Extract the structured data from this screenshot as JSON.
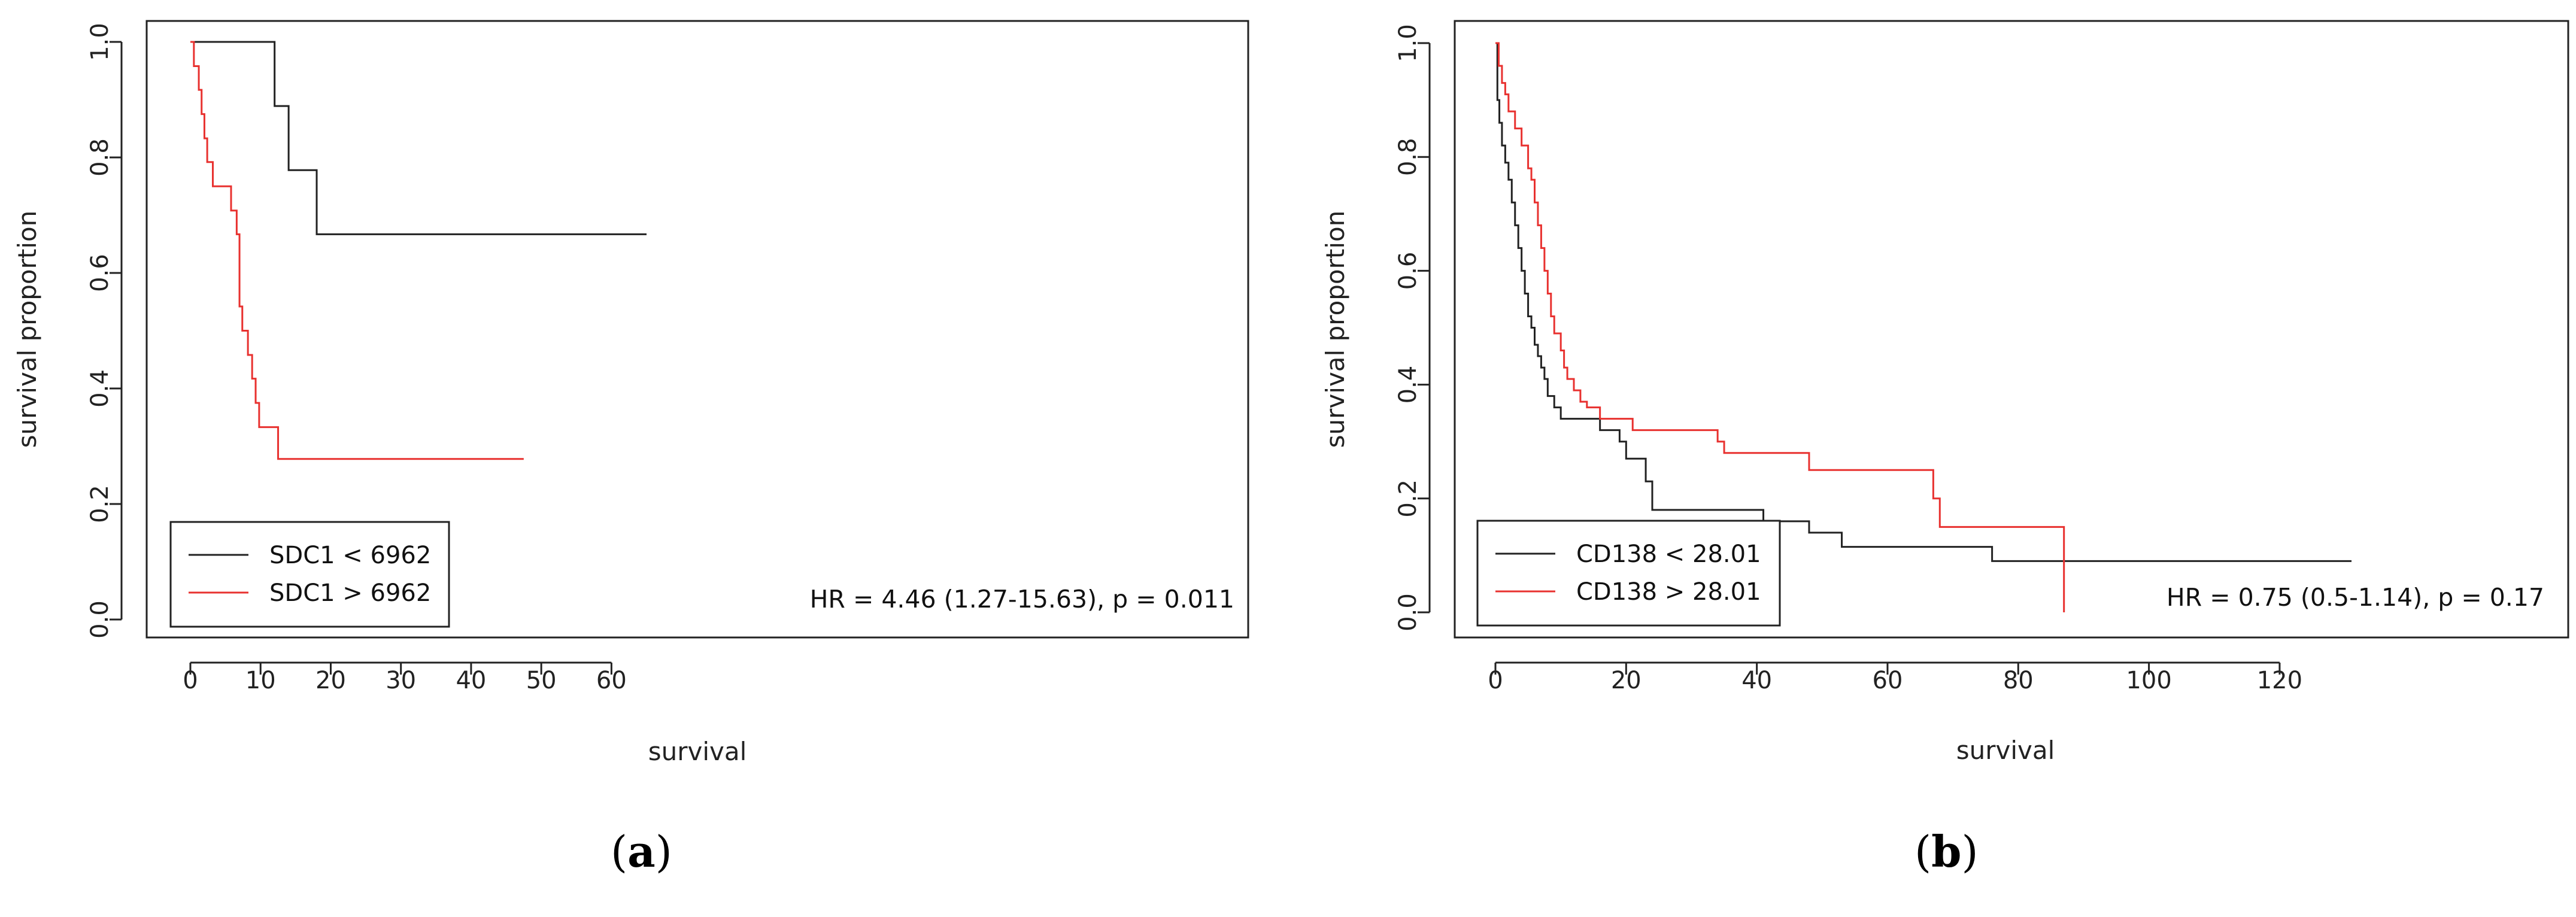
{
  "chart_data": [
    {
      "type": "line",
      "panel_label": "a",
      "xlabel": "survival",
      "ylabel": "survival proportion",
      "xlim": [
        0,
        65
      ],
      "ylim": [
        0,
        1
      ],
      "x_ticks": [
        0,
        10,
        20,
        30,
        40,
        50,
        60
      ],
      "x_tick_labels": [
        "0",
        "10",
        "20",
        "30",
        "40",
        "50",
        "60"
      ],
      "y_ticks": [
        0,
        0.2,
        0.4,
        0.6,
        0.8,
        1.0
      ],
      "y_tick_labels": [
        "0.0",
        "0.2",
        "0.4",
        "0.6",
        "0.8",
        "1.0"
      ],
      "legend_position": "bottom-left",
      "annotation": "HR = 4.46 (1.27-15.63), p = 0.011",
      "series": [
        {
          "name": "SDC1 < 6962",
          "color": "#222222",
          "step": true,
          "x": [
            0,
            12,
            14,
            18,
            65
          ],
          "y": [
            1.0,
            0.889,
            0.778,
            0.667,
            0.667
          ]
        },
        {
          "name": "SDC1 > 6962",
          "color": "#e8312f",
          "step": true,
          "x": [
            0,
            0.5,
            1.2,
            1.6,
            2.0,
            2.4,
            3.2,
            5.8,
            6.6,
            7.0,
            7.4,
            8.2,
            8.8,
            9.3,
            9.8,
            12.5,
            47.5
          ],
          "y": [
            1.0,
            0.958,
            0.917,
            0.875,
            0.833,
            0.792,
            0.75,
            0.708,
            0.667,
            0.542,
            0.5,
            0.458,
            0.417,
            0.375,
            0.333,
            0.278,
            0.278
          ]
        }
      ]
    },
    {
      "type": "line",
      "panel_label": "b",
      "xlabel": "survival",
      "ylabel": "survival proportion",
      "xlim": [
        0,
        131
      ],
      "ylim": [
        0,
        1
      ],
      "x_ticks": [
        0,
        20,
        40,
        60,
        80,
        100,
        120
      ],
      "x_tick_labels": [
        "0",
        "20",
        "40",
        "60",
        "80",
        "100",
        "120"
      ],
      "y_ticks": [
        0,
        0.2,
        0.4,
        0.6,
        0.8,
        1.0
      ],
      "y_tick_labels": [
        "0.0",
        "0.2",
        "0.4",
        "0.6",
        "0.8",
        "1.0"
      ],
      "legend_position": "bottom-left",
      "annotation": "HR = 0.75 (0.5-1.14), p = 0.17",
      "series": [
        {
          "name": "CD138 < 28.01",
          "color": "#222222",
          "step": true,
          "x": [
            0,
            0.3,
            0.6,
            1.0,
            1.5,
            2,
            2.5,
            3,
            3.5,
            4,
            4.5,
            5,
            5.5,
            6,
            6.5,
            7,
            7.5,
            8,
            9,
            10,
            11,
            16,
            19,
            20,
            23,
            24,
            41,
            48,
            53,
            76,
            131
          ],
          "y": [
            1.0,
            0.9,
            0.86,
            0.82,
            0.79,
            0.76,
            0.72,
            0.68,
            0.64,
            0.6,
            0.56,
            0.52,
            0.5,
            0.47,
            0.45,
            0.43,
            0.41,
            0.38,
            0.36,
            0.34,
            0.34,
            0.32,
            0.3,
            0.27,
            0.23,
            0.18,
            0.16,
            0.14,
            0.115,
            0.09,
            0.09
          ]
        },
        {
          "name": "CD138 > 28.01",
          "color": "#e8312f",
          "step": true,
          "x": [
            0,
            0.5,
            1,
            1.5,
            2,
            3,
            4,
            5,
            5.5,
            6,
            6.5,
            7,
            7.5,
            8,
            8.5,
            9,
            10,
            10.5,
            11,
            12,
            13,
            14,
            16,
            19,
            21,
            34,
            35,
            48,
            67,
            68,
            87
          ],
          "y": [
            1.0,
            0.96,
            0.93,
            0.91,
            0.88,
            0.85,
            0.82,
            0.78,
            0.76,
            0.72,
            0.68,
            0.64,
            0.6,
            0.56,
            0.52,
            0.49,
            0.46,
            0.43,
            0.41,
            0.39,
            0.37,
            0.36,
            0.34,
            0.34,
            0.32,
            0.3,
            0.28,
            0.25,
            0.2,
            0.15,
            0.0
          ]
        }
      ]
    }
  ]
}
